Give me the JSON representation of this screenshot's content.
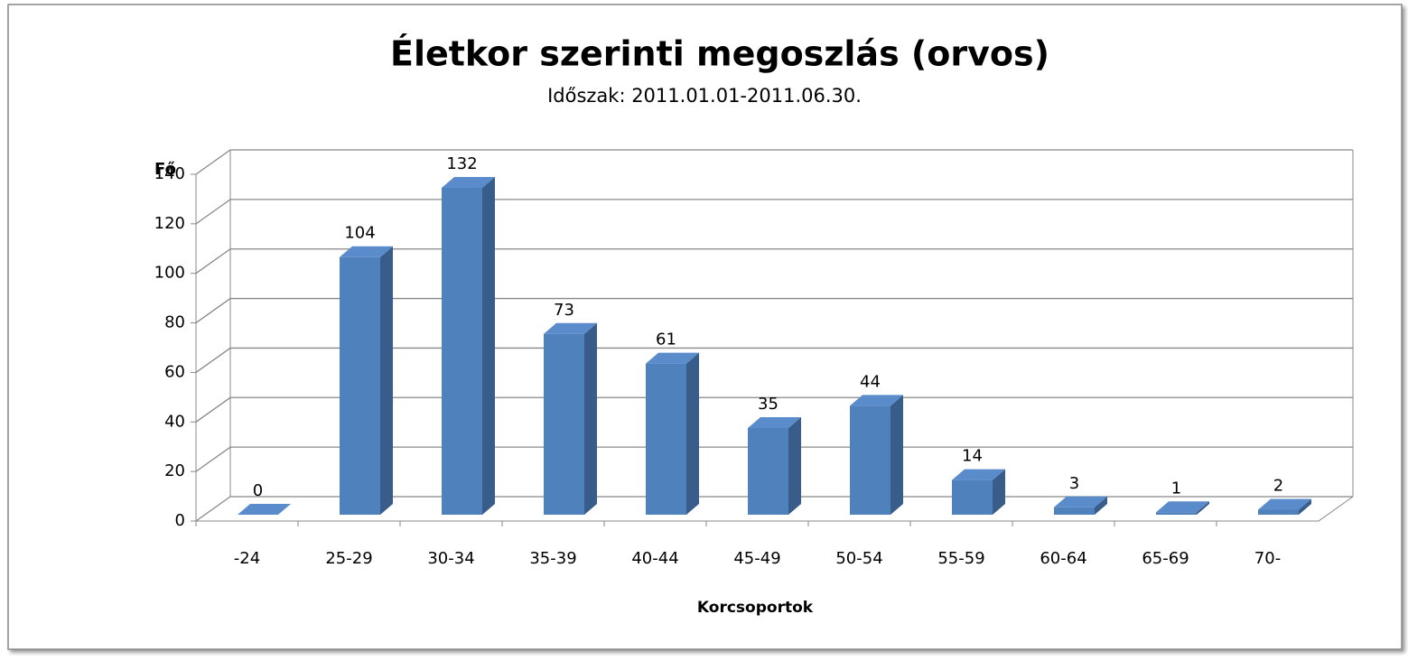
{
  "chart_data": {
    "type": "bar3d",
    "title": "Életkor szerinti megoszlás (orvos)",
    "subtitle": "Időszak: 2011.01.01-2011.06.30.",
    "y_label": "Fő",
    "x_label": "Korcsoportok",
    "categories": [
      "-24",
      "25-29",
      "30-34",
      "35-39",
      "40-44",
      "45-49",
      "50-54",
      "55-59",
      "60-64",
      "65-69",
      "70-"
    ],
    "values": [
      0,
      104,
      132,
      73,
      61,
      35,
      44,
      14,
      3,
      1,
      2
    ],
    "color": "#4f81bd",
    "ylim": [
      0,
      140
    ],
    "yticks": [
      0,
      20,
      40,
      60,
      80,
      100,
      120,
      140
    ],
    "grid": true
  }
}
